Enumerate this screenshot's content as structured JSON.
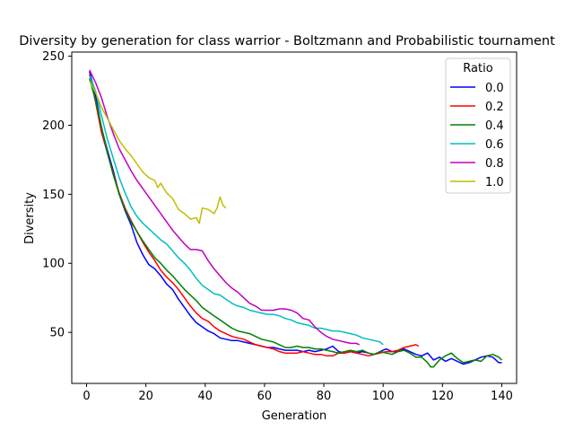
{
  "chart_data": {
    "type": "line",
    "title": "Diversity by generation for class warrior - Boltzmann and Probabilistic tournament",
    "xlabel": "Generation",
    "ylabel": "Diversity",
    "xlim": [
      -5,
      145
    ],
    "ylim": [
      13,
      253
    ],
    "xticks": [
      "0",
      "20",
      "40",
      "60",
      "80",
      "100",
      "120",
      "140"
    ],
    "yticks": [
      "50",
      "100",
      "150",
      "200",
      "250"
    ],
    "legend": {
      "title": "Ratio",
      "location": "upper right"
    },
    "series": [
      {
        "name": "0.0",
        "color": "#0000ff",
        "points": [
          [
            1,
            239
          ],
          [
            3,
            222
          ],
          [
            5,
            198
          ],
          [
            7,
            182
          ],
          [
            9,
            167
          ],
          [
            11,
            150
          ],
          [
            13,
            138
          ],
          [
            15,
            128
          ],
          [
            17,
            115
          ],
          [
            19,
            106
          ],
          [
            21,
            99
          ],
          [
            23,
            96
          ],
          [
            25,
            91
          ],
          [
            27,
            85
          ],
          [
            29,
            81
          ],
          [
            31,
            74
          ],
          [
            33,
            68
          ],
          [
            35,
            62
          ],
          [
            37,
            57
          ],
          [
            39,
            54
          ],
          [
            41,
            51
          ],
          [
            43,
            49
          ],
          [
            45,
            46
          ],
          [
            47,
            45
          ],
          [
            49,
            44
          ],
          [
            51,
            44
          ],
          [
            53,
            43
          ],
          [
            55,
            42
          ],
          [
            57,
            41
          ],
          [
            59,
            40
          ],
          [
            61,
            39
          ],
          [
            63,
            39
          ],
          [
            65,
            38
          ],
          [
            67,
            37
          ],
          [
            69,
            37
          ],
          [
            71,
            37
          ],
          [
            73,
            36
          ],
          [
            75,
            37
          ],
          [
            77,
            36
          ],
          [
            79,
            37
          ],
          [
            81,
            38
          ],
          [
            83,
            40
          ],
          [
            85,
            36
          ],
          [
            87,
            35
          ],
          [
            89,
            36
          ],
          [
            91,
            35
          ],
          [
            93,
            36
          ],
          [
            95,
            35
          ],
          [
            97,
            34
          ],
          [
            99,
            36
          ],
          [
            101,
            38
          ],
          [
            103,
            36
          ],
          [
            105,
            36
          ],
          [
            107,
            38
          ],
          [
            109,
            36
          ],
          [
            111,
            34
          ],
          [
            113,
            33
          ],
          [
            115,
            35
          ],
          [
            117,
            30
          ],
          [
            119,
            32
          ],
          [
            121,
            29
          ],
          [
            123,
            31
          ],
          [
            125,
            29
          ],
          [
            127,
            27
          ],
          [
            129,
            28
          ],
          [
            131,
            30
          ],
          [
            133,
            32
          ],
          [
            135,
            33
          ],
          [
            137,
            32
          ],
          [
            139,
            28
          ],
          [
            140,
            28
          ]
        ]
      },
      {
        "name": "0.2",
        "color": "#ff0000",
        "points": [
          [
            1,
            237
          ],
          [
            3,
            217
          ],
          [
            5,
            195
          ],
          [
            7,
            180
          ],
          [
            9,
            165
          ],
          [
            11,
            151
          ],
          [
            13,
            140
          ],
          [
            15,
            131
          ],
          [
            17,
            123
          ],
          [
            19,
            115
          ],
          [
            21,
            108
          ],
          [
            23,
            102
          ],
          [
            25,
            95
          ],
          [
            27,
            90
          ],
          [
            29,
            86
          ],
          [
            31,
            81
          ],
          [
            33,
            75
          ],
          [
            35,
            69
          ],
          [
            37,
            64
          ],
          [
            39,
            60
          ],
          [
            41,
            58
          ],
          [
            43,
            54
          ],
          [
            45,
            51
          ],
          [
            47,
            49
          ],
          [
            49,
            47
          ],
          [
            51,
            46
          ],
          [
            53,
            45
          ],
          [
            55,
            43
          ],
          [
            57,
            41
          ],
          [
            59,
            40
          ],
          [
            61,
            39
          ],
          [
            63,
            38
          ],
          [
            65,
            36
          ],
          [
            67,
            35
          ],
          [
            69,
            35
          ],
          [
            71,
            35
          ],
          [
            73,
            36
          ],
          [
            75,
            35
          ],
          [
            77,
            34
          ],
          [
            79,
            34
          ],
          [
            81,
            33
          ],
          [
            83,
            33
          ],
          [
            85,
            35
          ],
          [
            87,
            35
          ],
          [
            89,
            36
          ],
          [
            91,
            35
          ],
          [
            93,
            34
          ],
          [
            95,
            33
          ],
          [
            97,
            34
          ],
          [
            99,
            35
          ],
          [
            101,
            36
          ],
          [
            103,
            36
          ],
          [
            105,
            37
          ],
          [
            107,
            39
          ],
          [
            109,
            40
          ],
          [
            111,
            41
          ],
          [
            112,
            40
          ]
        ]
      },
      {
        "name": "0.4",
        "color": "#008000",
        "points": [
          [
            1,
            234
          ],
          [
            3,
            218
          ],
          [
            5,
            199
          ],
          [
            7,
            180
          ],
          [
            9,
            164
          ],
          [
            11,
            150
          ],
          [
            13,
            139
          ],
          [
            15,
            130
          ],
          [
            17,
            123
          ],
          [
            19,
            116
          ],
          [
            21,
            110
          ],
          [
            23,
            104
          ],
          [
            25,
            100
          ],
          [
            27,
            95
          ],
          [
            29,
            91
          ],
          [
            31,
            86
          ],
          [
            33,
            81
          ],
          [
            35,
            77
          ],
          [
            37,
            73
          ],
          [
            39,
            68
          ],
          [
            41,
            65
          ],
          [
            43,
            62
          ],
          [
            45,
            59
          ],
          [
            47,
            56
          ],
          [
            49,
            53
          ],
          [
            51,
            51
          ],
          [
            53,
            50
          ],
          [
            55,
            49
          ],
          [
            57,
            47
          ],
          [
            59,
            45
          ],
          [
            61,
            44
          ],
          [
            63,
            43
          ],
          [
            65,
            41
          ],
          [
            67,
            39
          ],
          [
            69,
            39
          ],
          [
            71,
            40
          ],
          [
            73,
            39
          ],
          [
            75,
            39
          ],
          [
            77,
            38
          ],
          [
            79,
            38
          ],
          [
            81,
            37
          ],
          [
            83,
            36
          ],
          [
            85,
            35
          ],
          [
            87,
            36
          ],
          [
            89,
            37
          ],
          [
            91,
            36
          ],
          [
            93,
            37
          ],
          [
            95,
            35
          ],
          [
            97,
            34
          ],
          [
            99,
            36
          ],
          [
            101,
            35
          ],
          [
            103,
            34
          ],
          [
            105,
            36
          ],
          [
            107,
            37
          ],
          [
            109,
            35
          ],
          [
            111,
            32
          ],
          [
            113,
            32
          ],
          [
            115,
            28
          ],
          [
            116,
            25
          ],
          [
            117,
            25
          ],
          [
            119,
            30
          ],
          [
            121,
            33
          ],
          [
            123,
            35
          ],
          [
            125,
            31
          ],
          [
            127,
            28
          ],
          [
            129,
            29
          ],
          [
            131,
            30
          ],
          [
            133,
            29
          ],
          [
            135,
            33
          ],
          [
            137,
            34
          ],
          [
            139,
            32
          ],
          [
            140,
            30
          ]
        ]
      },
      {
        "name": "0.6",
        "color": "#00bfbf",
        "points": [
          [
            1,
            236
          ],
          [
            3,
            225
          ],
          [
            5,
            207
          ],
          [
            7,
            190
          ],
          [
            9,
            176
          ],
          [
            11,
            162
          ],
          [
            13,
            151
          ],
          [
            15,
            141
          ],
          [
            17,
            134
          ],
          [
            19,
            129
          ],
          [
            21,
            125
          ],
          [
            23,
            121
          ],
          [
            25,
            117
          ],
          [
            27,
            114
          ],
          [
            29,
            109
          ],
          [
            31,
            104
          ],
          [
            33,
            100
          ],
          [
            35,
            95
          ],
          [
            37,
            89
          ],
          [
            39,
            84
          ],
          [
            41,
            81
          ],
          [
            43,
            78
          ],
          [
            45,
            77
          ],
          [
            47,
            74
          ],
          [
            49,
            71
          ],
          [
            51,
            69
          ],
          [
            53,
            68
          ],
          [
            55,
            66
          ],
          [
            57,
            65
          ],
          [
            59,
            64
          ],
          [
            61,
            63
          ],
          [
            63,
            63
          ],
          [
            65,
            62
          ],
          [
            67,
            60
          ],
          [
            69,
            59
          ],
          [
            71,
            57
          ],
          [
            73,
            56
          ],
          [
            75,
            55
          ],
          [
            77,
            53
          ],
          [
            79,
            53
          ],
          [
            81,
            52
          ],
          [
            83,
            51
          ],
          [
            85,
            51
          ],
          [
            87,
            50
          ],
          [
            89,
            49
          ],
          [
            91,
            48
          ],
          [
            93,
            46
          ],
          [
            95,
            45
          ],
          [
            97,
            44
          ],
          [
            99,
            43
          ],
          [
            100,
            41
          ]
        ]
      },
      {
        "name": "0.8",
        "color": "#bf00bf",
        "points": [
          [
            1,
            240
          ],
          [
            3,
            231
          ],
          [
            5,
            220
          ],
          [
            7,
            206
          ],
          [
            9,
            194
          ],
          [
            11,
            183
          ],
          [
            13,
            175
          ],
          [
            15,
            167
          ],
          [
            17,
            160
          ],
          [
            19,
            154
          ],
          [
            21,
            148
          ],
          [
            23,
            142
          ],
          [
            25,
            136
          ],
          [
            27,
            130
          ],
          [
            29,
            124
          ],
          [
            31,
            119
          ],
          [
            33,
            114
          ],
          [
            35,
            110
          ],
          [
            37,
            110
          ],
          [
            39,
            109
          ],
          [
            41,
            102
          ],
          [
            43,
            96
          ],
          [
            45,
            91
          ],
          [
            47,
            86
          ],
          [
            49,
            82
          ],
          [
            51,
            79
          ],
          [
            53,
            75
          ],
          [
            55,
            71
          ],
          [
            57,
            69
          ],
          [
            59,
            66
          ],
          [
            61,
            66
          ],
          [
            63,
            66
          ],
          [
            65,
            67
          ],
          [
            67,
            67
          ],
          [
            69,
            66
          ],
          [
            71,
            64
          ],
          [
            73,
            60
          ],
          [
            75,
            59
          ],
          [
            77,
            54
          ],
          [
            79,
            50
          ],
          [
            81,
            47
          ],
          [
            83,
            45
          ],
          [
            85,
            44
          ],
          [
            87,
            43
          ],
          [
            89,
            42
          ],
          [
            91,
            42
          ],
          [
            92,
            41
          ]
        ]
      },
      {
        "name": "1.0",
        "color": "#bfbf00",
        "points": [
          [
            1,
            232
          ],
          [
            3,
            224
          ],
          [
            5,
            213
          ],
          [
            7,
            205
          ],
          [
            9,
            197
          ],
          [
            11,
            189
          ],
          [
            13,
            183
          ],
          [
            15,
            178
          ],
          [
            17,
            172
          ],
          [
            19,
            166
          ],
          [
            21,
            162
          ],
          [
            23,
            160
          ],
          [
            24,
            155
          ],
          [
            25,
            158
          ],
          [
            27,
            151
          ],
          [
            29,
            147
          ],
          [
            31,
            139
          ],
          [
            33,
            136
          ],
          [
            35,
            132
          ],
          [
            37,
            133
          ],
          [
            38,
            129
          ],
          [
            39,
            140
          ],
          [
            41,
            139
          ],
          [
            43,
            136
          ],
          [
            44,
            140
          ],
          [
            45,
            148
          ],
          [
            46,
            142
          ],
          [
            47,
            140
          ]
        ]
      }
    ]
  }
}
